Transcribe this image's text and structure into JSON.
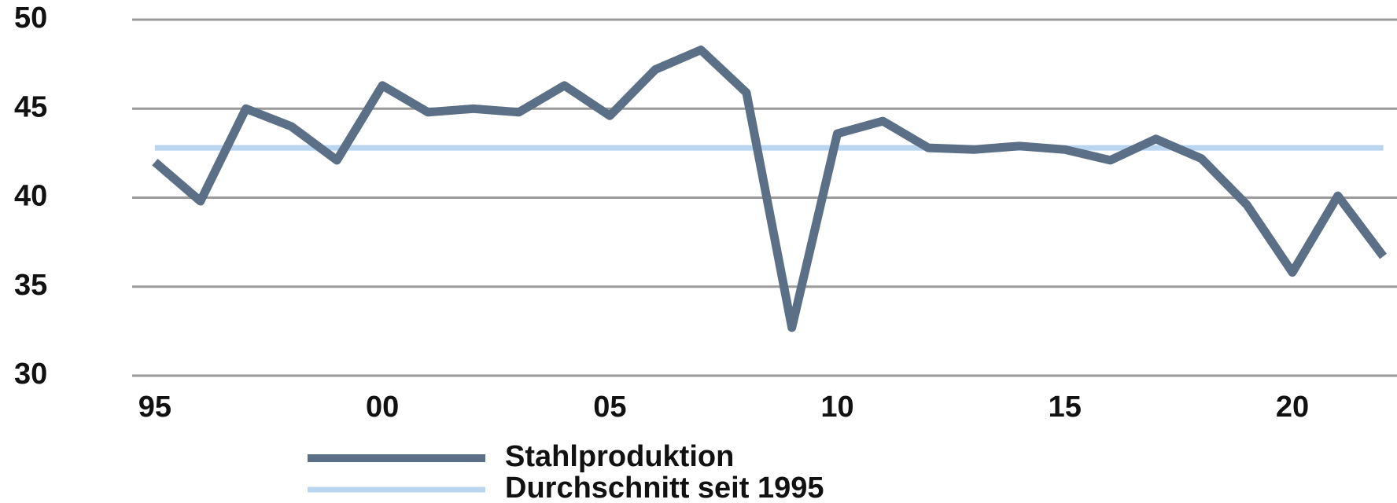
{
  "chart_data": {
    "type": "line",
    "x": [
      1995,
      1996,
      1997,
      1998,
      1999,
      2000,
      2001,
      2002,
      2003,
      2004,
      2005,
      2006,
      2007,
      2008,
      2009,
      2010,
      2011,
      2012,
      2013,
      2014,
      2015,
      2016,
      2017,
      2018,
      2019,
      2020,
      2021,
      2022
    ],
    "series": [
      {
        "name": "Stahlproduktion",
        "color": "#5b6f86",
        "values": [
          42.0,
          39.8,
          45.0,
          44.0,
          42.1,
          46.3,
          44.8,
          45.0,
          44.8,
          46.3,
          44.6,
          47.2,
          48.3,
          45.9,
          32.7,
          43.6,
          44.3,
          42.8,
          42.7,
          42.9,
          42.7,
          42.1,
          43.3,
          42.2,
          39.6,
          35.8,
          40.1,
          36.7
        ]
      },
      {
        "name": "Durchschnitt seit 1995",
        "color": "#b9d5ef",
        "values": [
          42.8,
          42.8,
          42.8,
          42.8,
          42.8,
          42.8,
          42.8,
          42.8,
          42.8,
          42.8,
          42.8,
          42.8,
          42.8,
          42.8,
          42.8,
          42.8,
          42.8,
          42.8,
          42.8,
          42.8,
          42.8,
          42.8,
          42.8,
          42.8,
          42.8,
          42.8,
          42.8,
          42.8
        ]
      }
    ],
    "xlim": [
      1994.5,
      2022.3
    ],
    "xticks": [
      {
        "value": 1995,
        "label": "95"
      },
      {
        "value": 2000,
        "label": "00"
      },
      {
        "value": 2005,
        "label": "05"
      },
      {
        "value": 2010,
        "label": "10"
      },
      {
        "value": 2015,
        "label": "15"
      },
      {
        "value": 2020,
        "label": "20"
      }
    ],
    "ylim": [
      30,
      50
    ],
    "yticks": [
      30,
      35,
      40,
      45,
      50
    ],
    "grid": true,
    "legend": "bottom"
  }
}
